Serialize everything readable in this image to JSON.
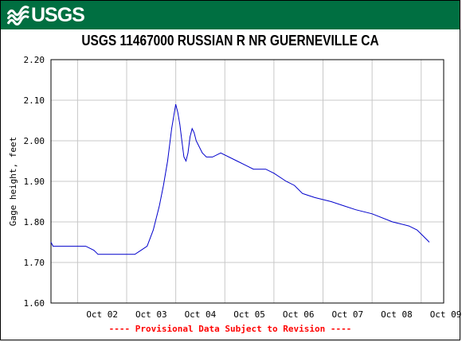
{
  "header": {
    "logo_text": "USGS",
    "logo_color": "#ffffff",
    "bar_color": "#006f41"
  },
  "title": "USGS 11467000 RUSSIAN R NR GUERNEVILLE CA",
  "footnote": "---- Provisional Data Subject to Revision ----",
  "footnote_color": "#ff0000",
  "chart_data": {
    "type": "line",
    "title": "USGS 11467000 RUSSIAN R NR GUERNEVILLE CA",
    "xlabel": "",
    "ylabel": "Gage height, feet",
    "ylim": [
      1.6,
      2.2
    ],
    "xlim": [
      "Oct 01 11:00",
      "Oct 09 11:00"
    ],
    "grid": true,
    "line_color": "#0000cc",
    "x_tick_labels": [
      "Oct 02",
      "Oct 03",
      "Oct 04",
      "Oct 05",
      "Oct 06",
      "Oct 07",
      "Oct 08",
      "Oct 09"
    ],
    "y_tick_labels": [
      "1.60",
      "1.70",
      "1.80",
      "1.90",
      "2.00",
      "2.10",
      "2.20"
    ],
    "y_ticks": [
      1.6,
      1.7,
      1.8,
      1.9,
      2.0,
      2.1,
      2.2
    ],
    "series": [
      {
        "x": [
          "Oct 01 11:00",
          "Oct 01 12:00",
          "Oct 01 20:00",
          "Oct 02 04:00",
          "Oct 02 08:00",
          "Oct 02 10:00",
          "Oct 02 16:00",
          "Oct 03 04:00",
          "Oct 03 07:00",
          "Oct 03 10:00",
          "Oct 03 13:00",
          "Oct 03 16:00",
          "Oct 03 18:00",
          "Oct 03 20:00",
          "Oct 03 22:00",
          "Oct 04 00:00",
          "Oct 04 01:00",
          "Oct 04 02:00",
          "Oct 04 03:00",
          "Oct 04 04:00",
          "Oct 04 05:00",
          "Oct 04 06:00",
          "Oct 04 07:00",
          "Oct 04 08:00",
          "Oct 04 09:00",
          "Oct 04 10:00",
          "Oct 04 11:00",
          "Oct 04 13:00",
          "Oct 04 15:00",
          "Oct 04 18:00",
          "Oct 04 22:00",
          "Oct 05 06:00",
          "Oct 05 10:00",
          "Oct 05 14:00",
          "Oct 05 20:00",
          "Oct 06 00:00",
          "Oct 06 06:00",
          "Oct 06 10:00",
          "Oct 06 14:00",
          "Oct 06 20:00",
          "Oct 07 04:00",
          "Oct 07 10:00",
          "Oct 07 16:00",
          "Oct 08 00:00",
          "Oct 08 10:00",
          "Oct 08 18:00",
          "Oct 08 22:00",
          "Oct 09 02:00",
          "Oct 09 04:00"
        ],
        "y": [
          1.75,
          1.74,
          1.74,
          1.74,
          1.73,
          1.72,
          1.72,
          1.72,
          1.73,
          1.74,
          1.78,
          1.84,
          1.89,
          1.95,
          2.03,
          2.09,
          2.07,
          2.04,
          2.0,
          1.96,
          1.95,
          1.97,
          2.01,
          2.03,
          2.02,
          2.0,
          1.99,
          1.97,
          1.96,
          1.96,
          1.97,
          1.95,
          1.94,
          1.93,
          1.93,
          1.92,
          1.9,
          1.89,
          1.87,
          1.86,
          1.85,
          1.84,
          1.83,
          1.82,
          1.8,
          1.79,
          1.78,
          1.76,
          1.75
        ]
      }
    ]
  }
}
